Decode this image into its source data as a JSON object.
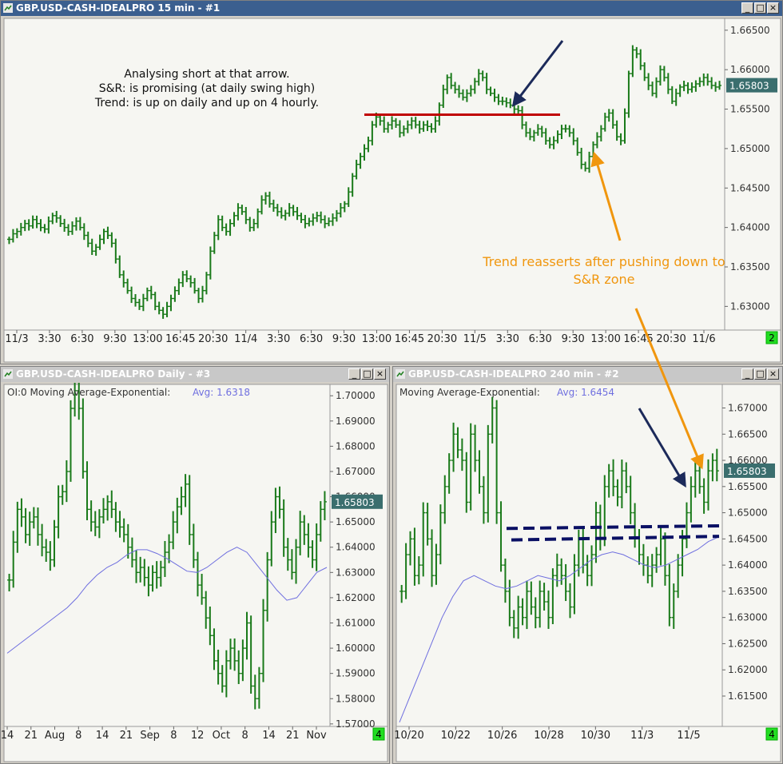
{
  "windows": [
    {
      "id": "w1",
      "title": "GBP.USD-CASH-IDEALPRO  15 min  - #1",
      "active": true,
      "price_tag": "1.65803",
      "corner_badge": "2",
      "xticks": [
        "11/3",
        "3:30",
        "6:30",
        "9:30",
        "13:00",
        "16:45",
        "20:30",
        "11/4",
        "3:30",
        "6:30",
        "9:30",
        "13:00",
        "16:45",
        "20:30",
        "11/5",
        "3:30",
        "6:30",
        "9:30",
        "13:00",
        "16:45",
        "20:30",
        "11/6"
      ],
      "yticks": [
        "1.66500",
        "1.66000",
        "1.65500",
        "1.65000",
        "1.64500",
        "1.64000",
        "1.63500",
        "1.63000"
      ],
      "annotation_lines": [
        "Analysing short at that arrow.",
        "S&R: is promising (at daily swing high)",
        "Trend: is up on daily and up on 4 hourly."
      ],
      "orange_note_lines": [
        "Trend reasserts after pushing down to",
        "S&R zone"
      ]
    },
    {
      "id": "w3",
      "title": "GBP.USD-CASH-IDEALPRO  Daily  - #3",
      "active": false,
      "indicator_label": "OI:0  Moving Average-Exponential:",
      "indicator_value": "Avg: 1.6318",
      "price_tag": "1.65803",
      "corner_badge": "4",
      "xticks": [
        "14",
        "21",
        "Aug",
        "8",
        "14",
        "21",
        "Sep",
        "8",
        "12",
        "Oct",
        "8",
        "14",
        "21",
        "Nov"
      ],
      "yticks": [
        "1.70000",
        "1.69000",
        "1.68000",
        "1.67000",
        "1.66000",
        "1.65000",
        "1.64000",
        "1.63000",
        "1.62000",
        "1.61000",
        "1.60000",
        "1.59000",
        "1.58000",
        "1.57000"
      ]
    },
    {
      "id": "w2",
      "title": "GBP.USD-CASH-IDEALPRO  240 min  - #2",
      "active": false,
      "indicator_label": "Moving Average-Exponential:",
      "indicator_value": "Avg: 1.6454",
      "price_tag": "1.65803",
      "corner_badge": "4",
      "xticks": [
        "10/20",
        "10/22",
        "10/26",
        "10/28",
        "10/30",
        "11/3",
        "11/5"
      ],
      "yticks": [
        "1.67000",
        "1.66500",
        "1.66000",
        "1.65500",
        "1.65000",
        "1.64500",
        "1.64000",
        "1.63500",
        "1.63000",
        "1.62500",
        "1.62000",
        "1.61500"
      ]
    }
  ],
  "window_buttons": {
    "minimize": "_",
    "maximize": "□",
    "close": "×"
  },
  "colors": {
    "bars": "#1a7a1a",
    "ma": "#6f6fdf",
    "sr_line": "#c00000",
    "arrow_navy": "#1c2a5a",
    "arrow_orange": "#f0960e",
    "dashed": "#0a1064",
    "price_tag_bg": "#3a6e6e",
    "badge": "#22dd22"
  },
  "chart_data": [
    {
      "type": "bar",
      "title": "GBP.USD-CASH-IDEALPRO  15 min  - #1",
      "ylim": [
        1.627,
        1.6665
      ],
      "last_price": 1.65803,
      "sr_level": 1.6543,
      "series": [
        {
          "values": [
            1.6385,
            1.6392,
            1.6395,
            1.64,
            1.6405,
            1.6402,
            1.641,
            1.6405,
            1.64,
            1.6398,
            1.6408,
            1.6415,
            1.6412,
            1.6405,
            1.64,
            1.6395,
            1.6402,
            1.6408,
            1.64,
            1.639,
            1.638,
            1.637,
            1.6375,
            1.6385,
            1.6395,
            1.639,
            1.638,
            1.636,
            1.634,
            1.633,
            1.632,
            1.631,
            1.6305,
            1.63,
            1.631,
            1.632,
            1.6315,
            1.63,
            1.6295,
            1.629,
            1.63,
            1.631,
            1.632,
            1.633,
            1.634,
            1.6335,
            1.633,
            1.632,
            1.631,
            1.632,
            1.634,
            1.637,
            1.639,
            1.641,
            1.64,
            1.6395,
            1.6405,
            1.6415,
            1.6425,
            1.642,
            1.641,
            1.64,
            1.6405,
            1.642,
            1.6435,
            1.644,
            1.643,
            1.6425,
            1.642,
            1.6415,
            1.6418,
            1.6425,
            1.642,
            1.6415,
            1.641,
            1.6405,
            1.6408,
            1.6412,
            1.6415,
            1.641,
            1.6405,
            1.6408,
            1.6412,
            1.6418,
            1.6425,
            1.643,
            1.6445,
            1.6465,
            1.648,
            1.649,
            1.65,
            1.651,
            1.653,
            1.654,
            1.6535,
            1.6525,
            1.653,
            1.6535,
            1.653,
            1.652,
            1.6525,
            1.653,
            1.6535,
            1.653,
            1.6525,
            1.653,
            1.6528,
            1.6525,
            1.6535,
            1.6555,
            1.6575,
            1.659,
            1.658,
            1.6575,
            1.657,
            1.6565,
            1.657,
            1.6575,
            1.6585,
            1.6595,
            1.659,
            1.6575,
            1.657,
            1.6565,
            1.656,
            1.656,
            1.6558,
            1.6555,
            1.655,
            1.6548,
            1.653,
            1.652,
            1.6515,
            1.652,
            1.6525,
            1.652,
            1.651,
            1.6505,
            1.651,
            1.6518,
            1.6525,
            1.6525,
            1.652,
            1.651,
            1.6495,
            1.648,
            1.6475,
            1.649,
            1.6505,
            1.6515,
            1.6525,
            1.654,
            1.6545,
            1.653,
            1.6515,
            1.651,
            1.6545,
            1.6595,
            1.6625,
            1.662,
            1.6605,
            1.659,
            1.658,
            1.657,
            1.6585,
            1.66,
            1.659,
            1.6575,
            1.656,
            1.657,
            1.6578,
            1.658,
            1.6575,
            1.6578,
            1.6582,
            1.6585,
            1.659,
            1.6585,
            1.658,
            1.6578,
            1.658
          ]
        }
      ]
    },
    {
      "type": "bar",
      "title": "GBP.USD-CASH-IDEALPRO  Daily  - #3",
      "ylim": [
        1.569,
        1.7045
      ],
      "ma_label": "Avg: 1.6318",
      "series": [
        {
          "values": [
            1.627,
            1.642,
            1.655,
            1.652,
            1.645,
            1.65,
            1.652,
            1.645,
            1.64,
            1.638,
            1.635,
            1.648,
            1.66,
            1.662,
            1.67,
            1.695,
            1.702,
            1.695,
            1.67,
            1.655,
            1.65,
            1.648,
            1.652,
            1.655,
            1.658,
            1.655,
            1.65,
            1.648,
            1.645,
            1.64,
            1.635,
            1.63,
            1.632,
            1.628,
            1.625,
            1.63,
            1.628,
            1.632,
            1.638,
            1.642,
            1.65,
            1.656,
            1.66,
            1.665,
            1.645,
            1.635,
            1.625,
            1.62,
            1.612,
            1.605,
            1.595,
            1.59,
            1.585,
            1.595,
            1.6,
            1.595,
            1.59,
            1.6,
            1.61,
            1.585,
            1.58,
            1.59,
            1.615,
            1.635,
            1.65,
            1.66,
            1.655,
            1.64,
            1.635,
            1.63,
            1.64,
            1.65,
            1.645,
            1.64,
            1.635,
            1.645,
            1.655,
            1.658
          ]
        },
        {
          "name": "Moving Average-Exponential",
          "values": [
            1.598,
            1.601,
            1.604,
            1.607,
            1.61,
            1.613,
            1.616,
            1.62,
            1.625,
            1.629,
            1.632,
            1.634,
            1.637,
            1.639,
            1.639,
            1.6375,
            1.6355,
            1.633,
            1.6305,
            1.63,
            1.632,
            1.635,
            1.638,
            1.64,
            1.638,
            1.633,
            1.628,
            1.623,
            1.619,
            1.62,
            1.625,
            1.63,
            1.632
          ]
        }
      ]
    },
    {
      "type": "bar",
      "title": "GBP.USD-CASH-IDEALPRO  240 min  - #2",
      "ylim": [
        1.6092,
        1.6745
      ],
      "ma_label": "Avg: 1.6454",
      "dashed_levels": [
        [
          1.647,
          1.6475
        ],
        [
          1.6448,
          1.6455
        ]
      ],
      "series": [
        {
          "values": [
            1.635,
            1.642,
            1.645,
            1.638,
            1.64,
            1.65,
            1.645,
            1.638,
            1.642,
            1.65,
            1.655,
            1.66,
            1.665,
            1.662,
            1.66,
            1.652,
            1.665,
            1.66,
            1.655,
            1.65,
            1.665,
            1.67,
            1.65,
            1.64,
            1.635,
            1.63,
            1.628,
            1.632,
            1.63,
            1.635,
            1.632,
            1.63,
            1.635,
            1.633,
            1.63,
            1.638,
            1.64,
            1.638,
            1.635,
            1.632,
            1.64,
            1.645,
            1.64,
            1.638,
            1.642,
            1.65,
            1.645,
            1.655,
            1.658,
            1.655,
            1.653,
            1.658,
            1.655,
            1.65,
            1.645,
            1.642,
            1.64,
            1.638,
            1.64,
            1.642,
            1.645,
            1.638,
            1.63,
            1.635,
            1.64,
            1.645,
            1.65,
            1.655,
            1.658,
            1.655,
            1.652,
            1.658,
            1.66,
            1.658
          ]
        },
        {
          "name": "Moving Average-Exponential",
          "values": [
            1.61,
            1.615,
            1.62,
            1.625,
            1.63,
            1.634,
            1.637,
            1.638,
            1.637,
            1.636,
            1.6355,
            1.636,
            1.637,
            1.638,
            1.6375,
            1.637,
            1.638,
            1.6395,
            1.641,
            1.642,
            1.6425,
            1.642,
            1.641,
            1.64,
            1.6395,
            1.64,
            1.641,
            1.642,
            1.643,
            1.6445,
            1.6454
          ]
        }
      ]
    }
  ]
}
